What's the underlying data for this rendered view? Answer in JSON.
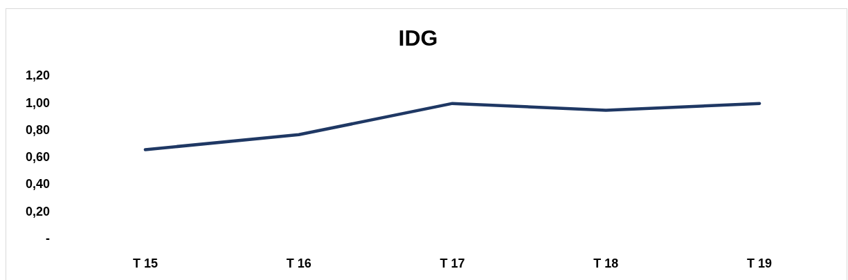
{
  "chart_data": {
    "type": "line",
    "title": "IDG",
    "categories": [
      "T 15",
      "T 16",
      "T 17",
      "T 18",
      "T 19"
    ],
    "series": [
      {
        "color": "#1f3864",
        "values": [
          0.66,
          0.77,
          1.0,
          0.95,
          1.0
        ]
      }
    ],
    "ylim": [
      0,
      1.2
    ],
    "yticks": [
      {
        "value": 0,
        "label": "-"
      },
      {
        "value": 0.2,
        "label": "0,20"
      },
      {
        "value": 0.4,
        "label": "0,40"
      },
      {
        "value": 0.6,
        "label": "0,60"
      },
      {
        "value": 0.8,
        "label": "0,80"
      },
      {
        "value": 1.0,
        "label": "1,00"
      },
      {
        "value": 1.2,
        "label": "1,20"
      }
    ],
    "marker": "none",
    "line_style": "solid"
  }
}
